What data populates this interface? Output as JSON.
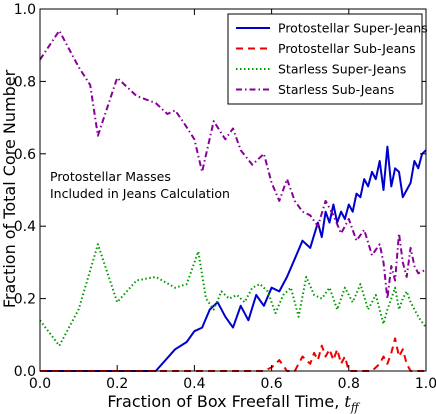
{
  "chart_data": {
    "type": "line",
    "xlabel": "Fraction of Box Freefall Time, ",
    "xlabel_symbol": "t",
    "xlabel_subscript": "ff",
    "ylabel": "Fraction of Total Core Number",
    "xlim": [
      0.0,
      1.0
    ],
    "ylim": [
      0.0,
      1.0
    ],
    "xticks": [
      "0.0",
      "0.2",
      "0.4",
      "0.6",
      "0.8",
      "1.0"
    ],
    "yticks": [
      "0.0",
      "0.2",
      "0.4",
      "0.6",
      "0.8",
      "1.0"
    ],
    "grid": false,
    "legend_position": "top-right",
    "annotation": [
      "Protostellar Masses",
      "Included in Jeans Calculation"
    ],
    "series": [
      {
        "name": "Protostellar Super-Jeans",
        "color": "#0000cc",
        "dash": "solid",
        "x": [
          0.0,
          0.1,
          0.2,
          0.29,
          0.3,
          0.35,
          0.38,
          0.4,
          0.42,
          0.44,
          0.46,
          0.48,
          0.5,
          0.52,
          0.54,
          0.56,
          0.58,
          0.6,
          0.62,
          0.64,
          0.66,
          0.68,
          0.7,
          0.72,
          0.73,
          0.74,
          0.75,
          0.76,
          0.77,
          0.78,
          0.79,
          0.8,
          0.81,
          0.82,
          0.83,
          0.84,
          0.85,
          0.86,
          0.87,
          0.88,
          0.89,
          0.9,
          0.91,
          0.92,
          0.93,
          0.94,
          0.95,
          0.96,
          0.97,
          0.98,
          0.99,
          1.0
        ],
        "y": [
          0.0,
          0.0,
          0.0,
          0.0,
          0.0,
          0.06,
          0.08,
          0.11,
          0.12,
          0.17,
          0.19,
          0.15,
          0.12,
          0.18,
          0.14,
          0.21,
          0.18,
          0.23,
          0.22,
          0.26,
          0.31,
          0.36,
          0.34,
          0.41,
          0.37,
          0.44,
          0.41,
          0.46,
          0.41,
          0.44,
          0.42,
          0.46,
          0.44,
          0.49,
          0.48,
          0.53,
          0.51,
          0.55,
          0.53,
          0.58,
          0.5,
          0.62,
          0.51,
          0.56,
          0.55,
          0.48,
          0.5,
          0.52,
          0.58,
          0.56,
          0.6,
          0.61
        ]
      },
      {
        "name": "Protostellar Sub-Jeans",
        "color": "#ee0000",
        "dash": "dashed",
        "x": [
          0.0,
          0.2,
          0.4,
          0.58,
          0.6,
          0.62,
          0.64,
          0.66,
          0.68,
          0.7,
          0.71,
          0.72,
          0.73,
          0.74,
          0.75,
          0.76,
          0.77,
          0.78,
          0.79,
          0.8,
          0.82,
          0.84,
          0.86,
          0.88,
          0.89,
          0.9,
          0.91,
          0.92,
          0.93,
          0.94,
          0.95,
          0.96,
          0.98,
          1.0
        ],
        "y": [
          0.0,
          0.0,
          0.0,
          0.0,
          0.01,
          0.03,
          0.0,
          0.0,
          0.04,
          0.02,
          0.05,
          0.03,
          0.07,
          0.04,
          0.06,
          0.03,
          0.06,
          0.02,
          0.04,
          0.0,
          0.0,
          0.0,
          0.0,
          0.02,
          0.04,
          0.02,
          0.05,
          0.09,
          0.04,
          0.06,
          0.02,
          0.0,
          0.0,
          0.0
        ]
      },
      {
        "name": "Starless Super-Jeans",
        "color": "#009900",
        "dash": "dotted",
        "x": [
          0.0,
          0.05,
          0.1,
          0.15,
          0.2,
          0.25,
          0.3,
          0.35,
          0.38,
          0.41,
          0.43,
          0.45,
          0.47,
          0.49,
          0.51,
          0.53,
          0.55,
          0.57,
          0.59,
          0.61,
          0.63,
          0.65,
          0.67,
          0.69,
          0.71,
          0.73,
          0.75,
          0.77,
          0.79,
          0.81,
          0.83,
          0.85,
          0.87,
          0.89,
          0.9,
          0.91,
          0.92,
          0.93,
          0.94,
          0.95,
          0.96,
          0.98,
          1.0
        ],
        "y": [
          0.14,
          0.07,
          0.17,
          0.35,
          0.19,
          0.25,
          0.26,
          0.23,
          0.24,
          0.33,
          0.2,
          0.17,
          0.22,
          0.2,
          0.21,
          0.19,
          0.23,
          0.24,
          0.22,
          0.16,
          0.21,
          0.23,
          0.15,
          0.26,
          0.21,
          0.2,
          0.23,
          0.17,
          0.23,
          0.19,
          0.24,
          0.17,
          0.21,
          0.13,
          0.17,
          0.2,
          0.23,
          0.17,
          0.2,
          0.22,
          0.19,
          0.15,
          0.12
        ]
      },
      {
        "name": "Starless Sub-Jeans",
        "color": "#880099",
        "dash": "dashdot",
        "x": [
          0.0,
          0.05,
          0.1,
          0.13,
          0.15,
          0.2,
          0.25,
          0.3,
          0.33,
          0.35,
          0.37,
          0.4,
          0.42,
          0.45,
          0.48,
          0.5,
          0.52,
          0.55,
          0.58,
          0.6,
          0.62,
          0.64,
          0.66,
          0.68,
          0.7,
          0.72,
          0.74,
          0.76,
          0.78,
          0.8,
          0.82,
          0.84,
          0.86,
          0.88,
          0.89,
          0.9,
          0.91,
          0.92,
          0.93,
          0.94,
          0.95,
          0.96,
          0.97,
          0.98,
          1.0
        ],
        "y": [
          0.86,
          0.94,
          0.84,
          0.79,
          0.65,
          0.81,
          0.76,
          0.74,
          0.71,
          0.72,
          0.69,
          0.64,
          0.55,
          0.69,
          0.64,
          0.67,
          0.61,
          0.57,
          0.6,
          0.52,
          0.47,
          0.53,
          0.47,
          0.44,
          0.43,
          0.4,
          0.47,
          0.43,
          0.38,
          0.42,
          0.36,
          0.39,
          0.32,
          0.35,
          0.3,
          0.2,
          0.29,
          0.25,
          0.38,
          0.3,
          0.26,
          0.34,
          0.29,
          0.27,
          0.28
        ]
      }
    ]
  }
}
